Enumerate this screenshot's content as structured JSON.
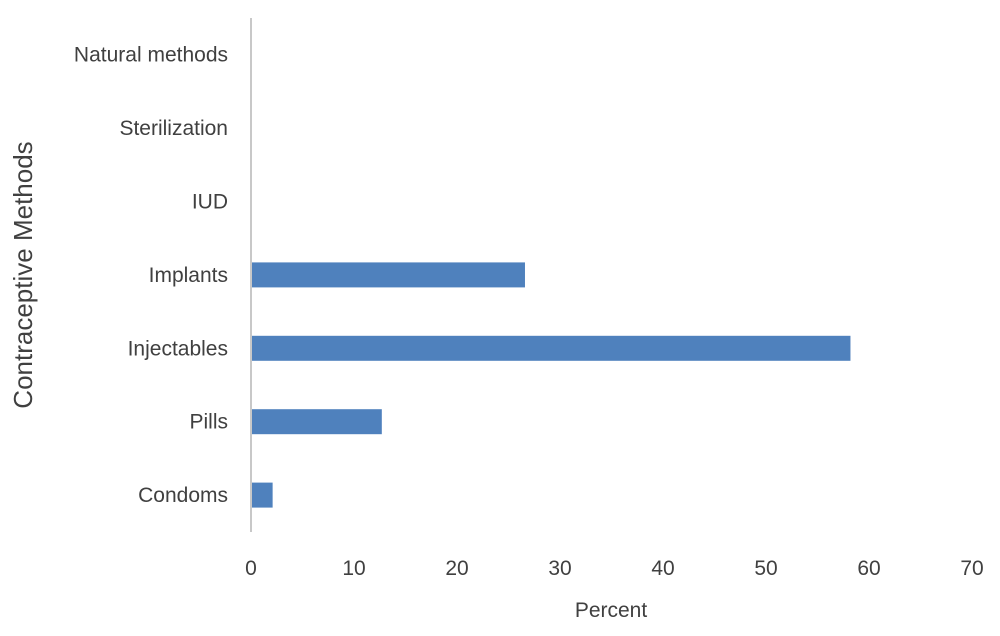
{
  "chart_data": {
    "type": "bar",
    "orientation": "horizontal",
    "categories": [
      "Condoms",
      "Pills",
      "Injectables",
      "Implants",
      "IUD",
      "Sterilization",
      "Natural methods"
    ],
    "values": [
      2.1,
      12.7,
      58.2,
      26.6,
      0,
      0,
      0
    ],
    "xlabel": "Percent",
    "ylabel": "Contraceptive Methods",
    "xlim": [
      0,
      70
    ],
    "xticks": [
      "0",
      "10",
      "20",
      "30",
      "40",
      "50",
      "60",
      "70"
    ],
    "grid": false,
    "legend": "none",
    "bar_color": "#4f81bd",
    "axis_color": "#c8c8c8"
  }
}
